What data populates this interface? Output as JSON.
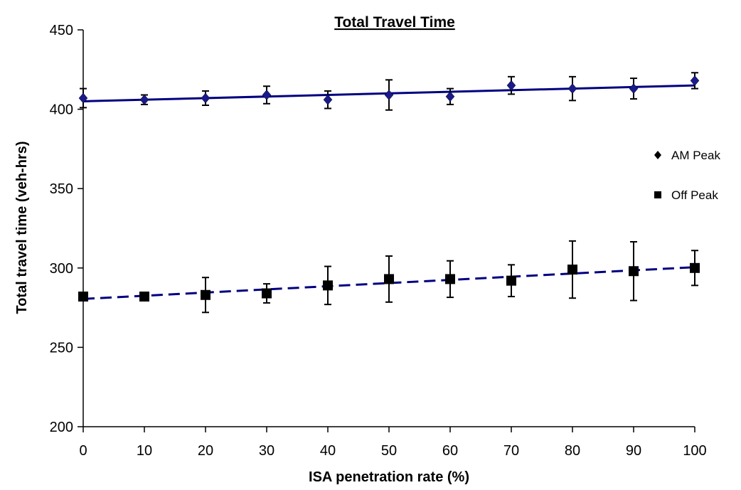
{
  "chart_data": {
    "type": "scatter",
    "title": "Total Travel Time",
    "xlabel": "ISA penetration rate (%)",
    "ylabel": "Total travel time (veh-hrs)",
    "xlim": [
      0,
      100
    ],
    "ylim": [
      200,
      450
    ],
    "xticks": [
      0,
      10,
      20,
      30,
      40,
      50,
      60,
      70,
      80,
      90,
      100
    ],
    "yticks": [
      200,
      250,
      300,
      350,
      400,
      450
    ],
    "grid": false,
    "legend_position": "right",
    "series": [
      {
        "name": "AM Peak",
        "marker": "diamond",
        "color": "#000000",
        "trend_color": "#000080",
        "trend_style": "solid",
        "trend": [
          405,
          415
        ],
        "x": [
          0,
          10,
          20,
          30,
          40,
          50,
          60,
          70,
          80,
          90,
          100
        ],
        "y": [
          407,
          406,
          407,
          409,
          406,
          409,
          408,
          415,
          413,
          413,
          418
        ],
        "err": [
          6,
          3,
          4.5,
          5.5,
          5.5,
          9.5,
          5,
          5.5,
          7.5,
          6.5,
          5
        ]
      },
      {
        "name": "Off Peak",
        "marker": "square",
        "color": "#000000",
        "trend_color": "#000080",
        "trend_style": "dashed",
        "trend": [
          280.5,
          300.5
        ],
        "x": [
          0,
          10,
          20,
          30,
          40,
          50,
          60,
          70,
          80,
          90,
          100
        ],
        "y": [
          282,
          282,
          283,
          284,
          289,
          293,
          293,
          292,
          299,
          298,
          300
        ],
        "err": [
          2,
          2,
          11,
          6,
          12,
          14.5,
          11.5,
          10,
          18,
          18.5,
          11
        ]
      }
    ]
  }
}
